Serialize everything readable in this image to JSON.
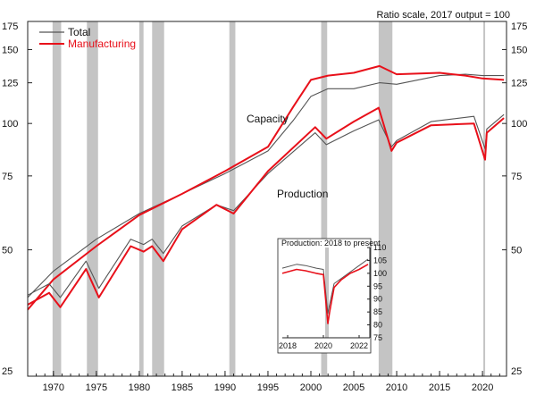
{
  "chart_data": {
    "type": "line",
    "title": "",
    "subtitle": "Ratio scale, 2017 output = 100",
    "y_scale": "log",
    "ylim": [
      25,
      175
    ],
    "y_ticks": [
      25,
      50,
      75,
      100,
      125,
      150,
      175
    ],
    "xlim": [
      1967,
      2022.8
    ],
    "x_ticks": [
      1970,
      1975,
      1980,
      1985,
      1990,
      1995,
      2000,
      2005,
      2010,
      2015,
      2020
    ],
    "legend": {
      "placement": "top-left",
      "entries": [
        {
          "name": "Total",
          "color": "#555555"
        },
        {
          "name": "Manufacturing",
          "color": "#e8101a"
        }
      ]
    },
    "annotations": [
      "Capacity",
      "Production"
    ],
    "recessions": [
      [
        1969.9,
        1970.9
      ],
      [
        1973.9,
        1975.2
      ],
      [
        1980.0,
        1980.5
      ],
      [
        1981.5,
        1982.9
      ],
      [
        1990.5,
        1991.2
      ],
      [
        2001.2,
        2001.9
      ],
      [
        2007.9,
        2009.5
      ],
      [
        2020.1,
        2020.3
      ]
    ],
    "series": [
      {
        "name": "Total",
        "group": "Capacity",
        "color": "#555555",
        "x": [
          1967,
          1970,
          1975,
          1980,
          1985,
          1990,
          1995,
          1998,
          2000,
          2002,
          2005,
          2008,
          2010,
          2015,
          2018,
          2020,
          2022.5
        ],
        "y": [
          38.5,
          44.5,
          53,
          61,
          68,
          76,
          86,
          102,
          116,
          121,
          121,
          125,
          124,
          130,
          131,
          130,
          130
        ]
      },
      {
        "name": "Manufacturing",
        "group": "Capacity",
        "color": "#e8101a",
        "x": [
          1967,
          1970,
          1975,
          1980,
          1985,
          1990,
          1995,
          1998,
          2000,
          2002,
          2005,
          2008,
          2010,
          2015,
          2018,
          2020,
          2022.5
        ],
        "y": [
          36,
          42.5,
          51,
          60.5,
          68,
          77,
          88,
          110,
          127,
          130,
          132,
          137,
          131,
          132,
          130,
          128,
          127
        ]
      },
      {
        "name": "Total",
        "group": "Production",
        "color": "#555555",
        "x": [
          1967,
          1969.5,
          1970.8,
          1973.8,
          1975.3,
          1979,
          1980.5,
          1981.5,
          1982.8,
          1985,
          1989,
          1991,
          1995,
          2000.5,
          2001.8,
          2005,
          2007.9,
          2009.4,
          2010,
          2014,
          2019,
          2020.3,
          2020.5,
          2022.5
        ],
        "y": [
          39,
          41.5,
          38.5,
          47,
          40.5,
          53,
          51.5,
          53,
          49,
          57,
          64,
          62,
          76,
          95,
          89,
          96,
          102,
          88,
          91,
          101,
          104,
          87,
          97,
          105
        ]
      },
      {
        "name": "Manufacturing",
        "group": "Production",
        "color": "#e8101a",
        "x": [
          1967,
          1969.5,
          1970.8,
          1973.8,
          1975.3,
          1979,
          1980.5,
          1981.5,
          1982.8,
          1985,
          1989,
          1991,
          1995,
          2000.5,
          2001.8,
          2005,
          2007.9,
          2009.4,
          2010,
          2014,
          2019,
          2020.3,
          2020.5,
          2022.5
        ],
        "y": [
          37,
          39.5,
          36.5,
          45,
          38.5,
          51,
          49.5,
          51,
          47,
          56,
          64,
          61,
          77,
          98,
          92,
          101,
          109,
          86,
          90,
          99,
          100,
          82,
          95,
          103
        ]
      }
    ],
    "inset": {
      "title": "Production: 2018 to present",
      "ylim": [
        75,
        110
      ],
      "y_ticks": [
        75,
        80,
        85,
        90,
        95,
        100,
        105,
        110
      ],
      "xlim": [
        2017.7,
        2022.6
      ],
      "x_ticks": [
        2018,
        2020,
        2022
      ],
      "recession": [
        2020.1,
        2020.3
      ],
      "series": [
        {
          "name": "Total",
          "color": "#555555",
          "x": [
            2017.7,
            2018.5,
            2019.0,
            2019.6,
            2020.0,
            2020.25,
            2020.35,
            2020.6,
            2021.0,
            2021.5,
            2022.0,
            2022.5
          ],
          "y": [
            102,
            103.5,
            103,
            102,
            101.5,
            84.5,
            88,
            96,
            98,
            100.5,
            103,
            105.5
          ]
        },
        {
          "name": "Manufacturing",
          "color": "#e8101a",
          "x": [
            2017.7,
            2018.5,
            2019.0,
            2019.6,
            2020.0,
            2020.25,
            2020.35,
            2020.6,
            2021.0,
            2021.5,
            2022.0,
            2022.5
          ],
          "y": [
            100,
            101.5,
            101,
            100,
            99.5,
            80.5,
            85,
            94.5,
            97.5,
            100,
            101.5,
            103.5
          ]
        }
      ]
    }
  }
}
